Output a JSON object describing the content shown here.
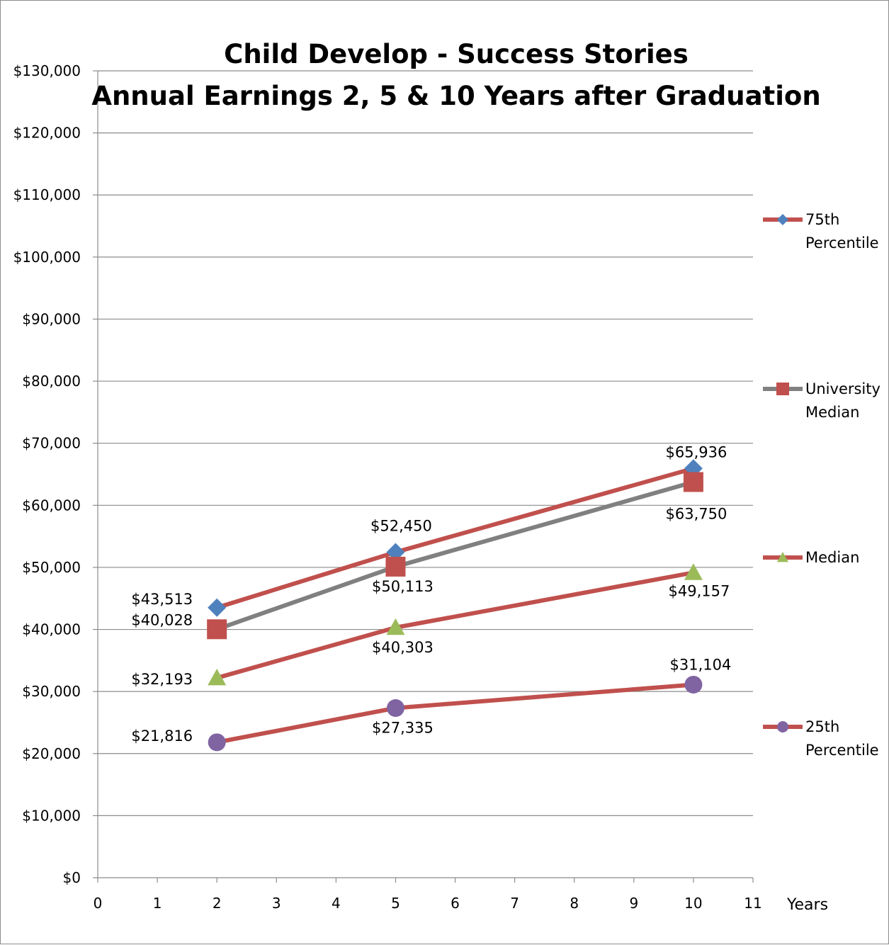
{
  "chart_data": {
    "type": "line",
    "title": "Child Develop - Success Stories",
    "subtitle": "Annual Earnings 2, 5 & 10 Years after Graduation",
    "xlabel": "Years",
    "ylabel": "",
    "xlim": [
      0,
      11
    ],
    "ylim": [
      0,
      130000
    ],
    "x_ticks": [
      "0",
      "1",
      "2",
      "3",
      "4",
      "5",
      "6",
      "7",
      "8",
      "9",
      "10",
      "11"
    ],
    "y_ticks": [
      "$0",
      "$10,000",
      "$20,000",
      "$30,000",
      "$40,000",
      "$50,000",
      "$60,000",
      "$70,000",
      "$80,000",
      "$90,000",
      "$100,000",
      "$110,000",
      "$120,000",
      "$130,000"
    ],
    "grid": "horizontal",
    "legend_position": "right",
    "series": [
      {
        "name": "75th Percentile",
        "legend_lines": [
          "75th",
          "Percentile"
        ],
        "line_color": "#C0504D",
        "marker": "diamond",
        "marker_color": "#4F81BD",
        "x": [
          2,
          5,
          10
        ],
        "y": [
          43513,
          52450,
          65936
        ],
        "labels": [
          "$43,513",
          "$52,450",
          "$65,936"
        ]
      },
      {
        "name": "University Median",
        "legend_lines": [
          "University",
          "Median"
        ],
        "line_color": "#808080",
        "marker": "square",
        "marker_color": "#C0504D",
        "x": [
          2,
          5,
          10
        ],
        "y": [
          40028,
          50113,
          63750
        ],
        "labels": [
          "$40,028",
          "$50,113",
          "$63,750"
        ]
      },
      {
        "name": "Median",
        "legend_lines": [
          "Median"
        ],
        "line_color": "#C0504D",
        "marker": "triangle",
        "marker_color": "#9BBB59",
        "x": [
          2,
          5,
          10
        ],
        "y": [
          32193,
          40303,
          49157
        ],
        "labels": [
          "$32,193",
          "$40,303",
          "$49,157"
        ]
      },
      {
        "name": "25th Percentile",
        "legend_lines": [
          "25th",
          "Percentile"
        ],
        "line_color": "#C0504D",
        "marker": "circle",
        "marker_color": "#8064A2",
        "x": [
          2,
          5,
          10
        ],
        "y": [
          21816,
          27335,
          31104
        ],
        "labels": [
          "$21,816",
          "$27,335",
          "$31,104"
        ]
      }
    ]
  }
}
